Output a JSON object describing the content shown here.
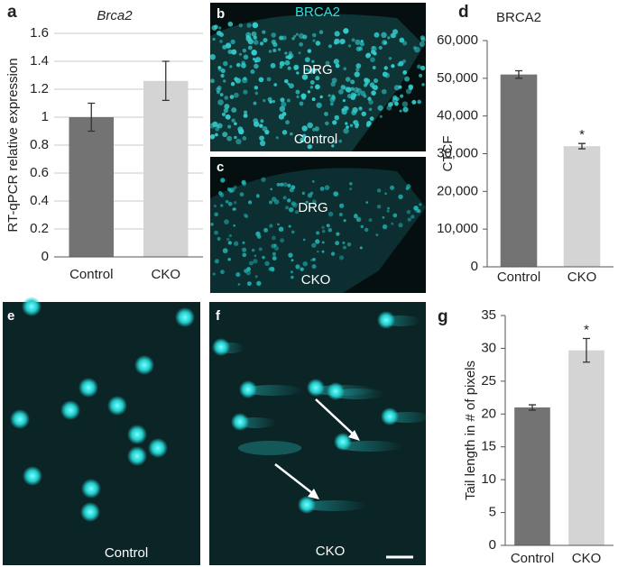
{
  "chart_data": [
    {
      "type": "bar",
      "label": "a",
      "title": "Brca2",
      "ylabel": "RT-qPCR relative expression",
      "categories": [
        "Control",
        "CKO"
      ],
      "values": [
        1.0,
        1.26
      ],
      "errors": [
        0.1,
        0.14
      ],
      "colors": [
        "#737373",
        "#d4d4d4"
      ],
      "ylim": [
        0,
        1.6
      ],
      "yticks": [
        0,
        0.2,
        0.4,
        0.6,
        0.8,
        1,
        1.2,
        1.4,
        1.6
      ],
      "grid": true
    },
    {
      "type": "bar",
      "label": "d",
      "title": "BRCA2",
      "ylabel": "CTCF",
      "categories": [
        "Control",
        "CKO"
      ],
      "values": [
        51000,
        32000
      ],
      "errors": [
        1000,
        700
      ],
      "colors": [
        "#737373",
        "#d4d4d4"
      ],
      "annotation": "*",
      "ylim": [
        0,
        60000
      ],
      "yticks": [
        0,
        {
          "value": 10000,
          "label": "10,000"
        },
        {
          "value": 20000,
          "label": "20,000"
        },
        {
          "value": 30000,
          "label": "30,000"
        },
        {
          "value": 40000,
          "label": "40,000"
        },
        {
          "value": 50000,
          "label": "50,000"
        },
        {
          "value": 60000,
          "label": "60,000"
        }
      ],
      "grid": false
    },
    {
      "type": "bar",
      "label": "g",
      "ylabel": "Tail length in # of pixels",
      "categories": [
        "Control",
        "CKO"
      ],
      "values": [
        21,
        29.7
      ],
      "errors": [
        0.4,
        1.8
      ],
      "colors": [
        "#737373",
        "#d4d4d4"
      ],
      "annotation": "*",
      "ylim": [
        0,
        35
      ],
      "yticks": [
        0,
        5,
        10,
        15,
        20,
        25,
        30,
        35
      ],
      "grid": false
    }
  ],
  "images": [
    {
      "letter": "b",
      "stain": "BRCA2",
      "region": "DRG",
      "condition": "Control"
    },
    {
      "letter": "c",
      "region": "DRG",
      "condition": "CKO"
    },
    {
      "letter": "e",
      "condition": "Control"
    },
    {
      "letter": "f",
      "condition": "CKO"
    }
  ]
}
